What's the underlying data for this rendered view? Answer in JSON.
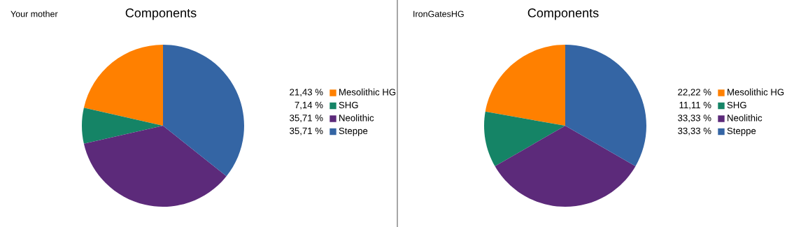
{
  "chart_data": [
    {
      "type": "pie",
      "title": "Components",
      "subtitle": "Your mother",
      "categories": [
        "Mesolithic HG",
        "SHG",
        "Neolithic",
        "Steppe"
      ],
      "values": [
        21.43,
        7.14,
        35.71,
        35.71
      ],
      "value_labels": [
        "21,43 %",
        "7,14 %",
        "35,71 %",
        "35,71 %"
      ],
      "colors": [
        "#ff8000",
        "#158466",
        "#5c2a7a",
        "#3465a4"
      ],
      "legend": "right"
    },
    {
      "type": "pie",
      "title": "Components",
      "subtitle": "IronGatesHG",
      "categories": [
        "Mesolithic HG",
        "SHG",
        "Neolithic",
        "Steppe"
      ],
      "values": [
        22.22,
        11.11,
        33.33,
        33.33
      ],
      "value_labels": [
        "22,22 %",
        "11,11 %",
        "33,33 %",
        "33,33 %"
      ],
      "colors": [
        "#ff8000",
        "#158466",
        "#5c2a7a",
        "#3465a4"
      ],
      "legend": "right"
    }
  ]
}
